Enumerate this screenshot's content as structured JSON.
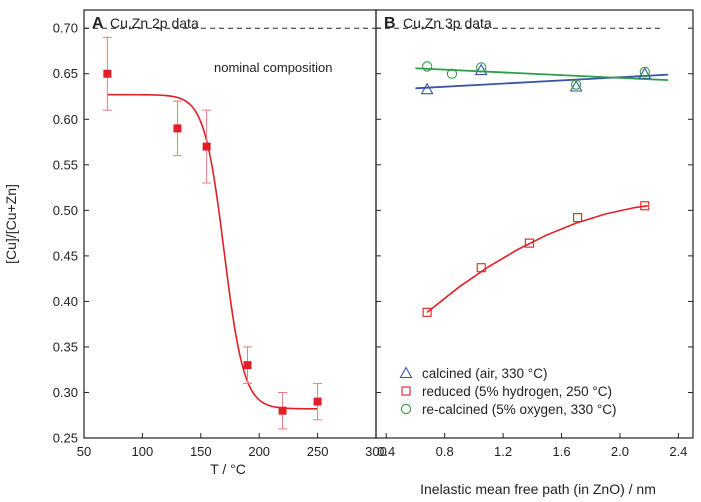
{
  "chart_data": [
    {
      "panel": "A",
      "type": "scatter",
      "title": "Cu,Zn 2p data",
      "xlabel": "T / °C",
      "ylabel": "[Cu]/[Cu+Zn]",
      "xlim": [
        50,
        300
      ],
      "ylim": [
        0.25,
        0.72
      ],
      "xticks": [
        "50",
        "100",
        "150",
        "200",
        "250",
        "300"
      ],
      "xtick_values": [
        50,
        100,
        150,
        200,
        250,
        300
      ],
      "yticks": [
        "0.25",
        "0.30",
        "0.35",
        "0.40",
        "0.45",
        "0.50",
        "0.55",
        "0.60",
        "0.65",
        "0.70"
      ],
      "ytick_values": [
        0.25,
        0.3,
        0.35,
        0.4,
        0.45,
        0.5,
        0.55,
        0.6,
        0.65,
        0.7
      ],
      "reference_line": {
        "y": 0.7,
        "label": "nominal composition",
        "style": "dashed"
      },
      "series": [
        {
          "name": "Cu,Zn 2p data",
          "marker": "filled-square",
          "color": "#e02027",
          "x": [
            70,
            130,
            155,
            190,
            220,
            250
          ],
          "y": [
            0.65,
            0.59,
            0.57,
            0.33,
            0.28,
            0.29
          ],
          "err": [
            0.04,
            0.03,
            0.04,
            0.02,
            0.02,
            0.02
          ]
        }
      ],
      "fit": {
        "type": "sigmoid",
        "color": "#e02027",
        "x_range": [
          70,
          250
        ],
        "top": 0.627,
        "bottom": 0.282,
        "midpoint": 170,
        "width": 8.5
      }
    },
    {
      "panel": "B",
      "type": "scatter",
      "title": "Cu,Zn 3p data",
      "xlabel": "Inelastic mean free path (in ZnO) / nm",
      "xlim": [
        0.33,
        2.5
      ],
      "ylim": [
        0.25,
        0.72
      ],
      "xticks": [
        "0.4",
        "0.8",
        "1.2",
        "1.6",
        "2.0",
        "2.4"
      ],
      "xtick_values": [
        0.4,
        0.8,
        1.2,
        1.6,
        2.0,
        2.4
      ],
      "reference_line": {
        "y": 0.7,
        "style": "dashed",
        "x_end": 2.3
      },
      "series": [
        {
          "name": "calcined (air, 330 °C)",
          "marker": "open-triangle",
          "color": "#3a55a4",
          "x": [
            0.68,
            1.05,
            1.7,
            2.17
          ],
          "y": [
            0.633,
            0.654,
            0.636,
            0.65
          ]
        },
        {
          "name": "reduced (5% hydrogen, 250 °C)",
          "marker": "open-square",
          "color": "#e02027",
          "x": [
            0.68,
            1.05,
            1.38,
            1.71,
            2.17
          ],
          "y": [
            0.388,
            0.437,
            0.464,
            0.492,
            0.505
          ]
        },
        {
          "name": "re-calcined (5% oxygen, 330 °C)",
          "marker": "open-circle",
          "color": "#2e9e48",
          "x": [
            0.68,
            0.85,
            1.05,
            1.7,
            2.17
          ],
          "y": [
            0.658,
            0.65,
            0.657,
            0.638,
            0.652
          ]
        }
      ],
      "fits": [
        {
          "series": "calcined (air, 330 °C)",
          "type": "linear",
          "color": "#3a55a4",
          "x_range": [
            0.6,
            2.33
          ],
          "y_start": 0.634,
          "y_end": 0.649
        },
        {
          "series": "re-calcined (5% oxygen, 330 °C)",
          "type": "linear",
          "color": "#2e9e48",
          "x_range": [
            0.6,
            2.33
          ],
          "y_start": 0.656,
          "y_end": 0.643
        },
        {
          "series": "reduced (5% hydrogen, 250 °C)",
          "type": "curve",
          "color": "#e02027",
          "x": [
            0.68,
            0.9,
            1.1,
            1.3,
            1.5,
            1.7,
            1.9,
            2.1,
            2.19
          ],
          "y": [
            0.388,
            0.416,
            0.438,
            0.457,
            0.473,
            0.486,
            0.496,
            0.503,
            0.505
          ]
        }
      ],
      "legend": {
        "placement": "bottom-left",
        "entries": [
          "calcined (air, 330 °C)",
          "reduced (5% hydrogen, 250 °C)",
          "re-calcined (5% oxygen, 330 °C)"
        ]
      }
    }
  ]
}
